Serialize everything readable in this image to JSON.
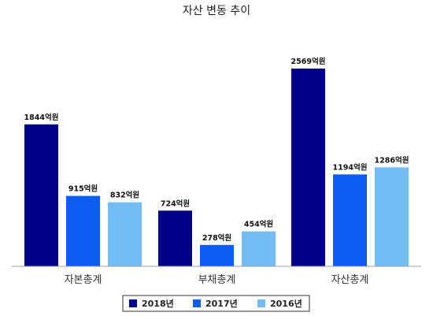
{
  "chart_data": {
    "type": "bar",
    "title": "자산 변동 추이",
    "categories": [
      "자본총계",
      "부채총계",
      "자산총계"
    ],
    "series": [
      {
        "name": "2018년",
        "values": [
          1844,
          724,
          2569
        ],
        "color": "#00008b"
      },
      {
        "name": "2017년",
        "values": [
          915,
          278,
          1194
        ],
        "color": "#0d5cf5"
      },
      {
        "name": "2016년",
        "values": [
          832,
          454,
          1286
        ],
        "color": "#73bdf7"
      }
    ],
    "value_suffix": "억원",
    "ylim": [
      0,
      2800
    ],
    "grid": false,
    "legend_position": "bottom-center",
    "axis_color": "#a0a0a0"
  }
}
